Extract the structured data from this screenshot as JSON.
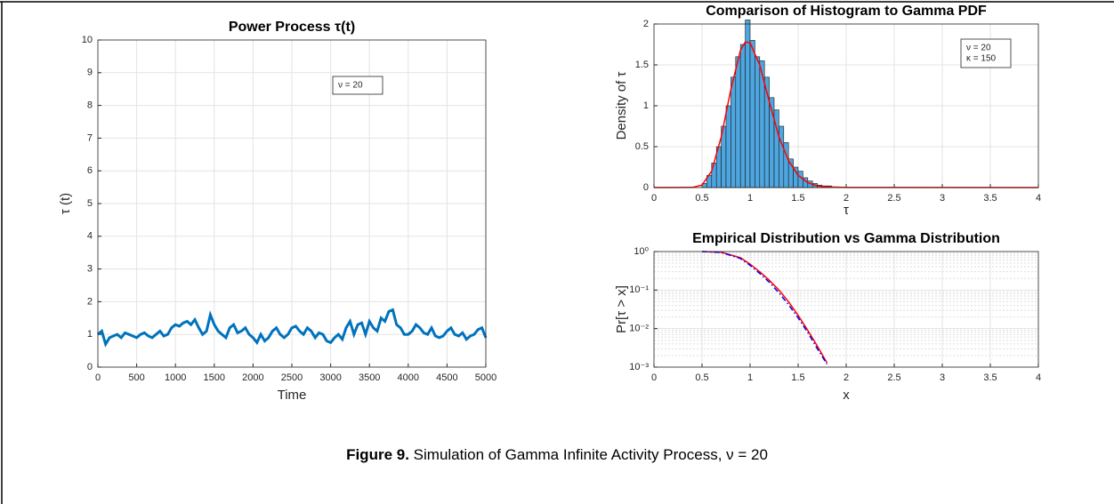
{
  "chart_data": [
    {
      "type": "line",
      "title": "Power Process τ(t)",
      "xlabel": "Time",
      "ylabel": "τ (t)",
      "annotations": [
        "ν = 20"
      ],
      "xlim": [
        0,
        5000
      ],
      "xticks": [
        0,
        500,
        1000,
        1500,
        2000,
        2500,
        3000,
        3500,
        4000,
        4500,
        5000
      ],
      "ylim": [
        0,
        10
      ],
      "yticks": [
        0,
        1,
        2,
        3,
        4,
        5,
        6,
        7,
        8,
        9,
        10
      ],
      "grid": true,
      "series": [
        {
          "color": "#0072bd",
          "style": "solid",
          "width": 3,
          "x": [
            0,
            50,
            100,
            150,
            200,
            250,
            300,
            350,
            400,
            450,
            500,
            550,
            600,
            650,
            700,
            750,
            800,
            850,
            900,
            950,
            1000,
            1050,
            1100,
            1150,
            1200,
            1250,
            1300,
            1350,
            1400,
            1450,
            1500,
            1550,
            1600,
            1650,
            1700,
            1750,
            1800,
            1850,
            1900,
            1950,
            2000,
            2050,
            2100,
            2150,
            2200,
            2250,
            2300,
            2350,
            2400,
            2450,
            2500,
            2550,
            2600,
            2650,
            2700,
            2750,
            2800,
            2850,
            2900,
            2950,
            3000,
            3050,
            3100,
            3150,
            3200,
            3250,
            3300,
            3350,
            3400,
            3450,
            3500,
            3550,
            3600,
            3650,
            3700,
            3750,
            3800,
            3850,
            3900,
            3950,
            4000,
            4050,
            4100,
            4150,
            4200,
            4250,
            4300,
            4350,
            4400,
            4450,
            4500,
            4550,
            4600,
            4650,
            4700,
            4750,
            4800,
            4850,
            4900,
            4950,
            5000
          ],
          "values": [
            1.0,
            1.1,
            0.7,
            0.9,
            0.95,
            1.0,
            0.9,
            1.05,
            1.0,
            0.95,
            0.9,
            1.0,
            1.05,
            0.95,
            0.9,
            1.0,
            1.1,
            0.95,
            1.0,
            1.2,
            1.3,
            1.25,
            1.35,
            1.4,
            1.3,
            1.45,
            1.2,
            1.0,
            1.1,
            1.6,
            1.3,
            1.1,
            1.0,
            0.9,
            1.2,
            1.3,
            1.05,
            1.1,
            1.2,
            1.0,
            0.9,
            0.75,
            1.0,
            0.8,
            0.9,
            1.1,
            1.2,
            1.0,
            0.9,
            1.0,
            1.2,
            1.25,
            1.1,
            1.0,
            1.2,
            1.1,
            0.9,
            1.05,
            1.0,
            0.8,
            0.75,
            0.9,
            1.0,
            0.85,
            1.2,
            1.4,
            1.0,
            1.3,
            1.35,
            1.0,
            1.4,
            1.2,
            1.1,
            1.5,
            1.4,
            1.7,
            1.75,
            1.3,
            1.2,
            1.0,
            1.0,
            1.1,
            1.3,
            1.2,
            1.05,
            1.0,
            1.2,
            0.95,
            0.9,
            0.95,
            1.1,
            1.2,
            1.0,
            0.95,
            1.05,
            0.85,
            0.95,
            1.0,
            1.15,
            1.2,
            0.9
          ]
        }
      ]
    },
    {
      "type": "histogram",
      "title": "Comparison of Histogram to Gamma PDF",
      "xlabel": "τ",
      "ylabel": "Density of τ",
      "annotations": [
        "ν = 20",
        "κ = 150"
      ],
      "xlim": [
        0,
        4
      ],
      "xticks": [
        0,
        0.5,
        1,
        1.5,
        2,
        2.5,
        3,
        3.5,
        4
      ],
      "ylim": [
        0,
        2
      ],
      "yticks": [
        0,
        0.5,
        1,
        1.5,
        2
      ],
      "grid": true,
      "color": "#4da6df",
      "bins": [
        0.5,
        0.55,
        0.6,
        0.65,
        0.7,
        0.75,
        0.8,
        0.85,
        0.9,
        0.95,
        1.0,
        1.05,
        1.1,
        1.15,
        1.2,
        1.25,
        1.3,
        1.35,
        1.4,
        1.45,
        1.5,
        1.55,
        1.6,
        1.65,
        1.7,
        1.75,
        1.8,
        1.85
      ],
      "values": [
        0.05,
        0.15,
        0.3,
        0.5,
        0.75,
        1.0,
        1.35,
        1.6,
        1.75,
        2.05,
        1.8,
        1.6,
        1.55,
        1.35,
        1.1,
        0.95,
        0.75,
        0.55,
        0.35,
        0.25,
        0.2,
        0.12,
        0.08,
        0.05,
        0.03,
        0.02,
        0.02
      ],
      "series": [
        {
          "color": "#ff0000",
          "style": "solid",
          "width": 1.5,
          "x": [
            0,
            0.4,
            0.5,
            0.6,
            0.7,
            0.8,
            0.9,
            0.95,
            1.0,
            1.1,
            1.2,
            1.3,
            1.4,
            1.5,
            1.6,
            1.7,
            1.8,
            2.0,
            4
          ],
          "values": [
            0,
            0.002,
            0.03,
            0.2,
            0.62,
            1.2,
            1.68,
            1.78,
            1.77,
            1.5,
            1.05,
            0.62,
            0.33,
            0.15,
            0.06,
            0.02,
            0.008,
            0.001,
            0
          ]
        }
      ]
    },
    {
      "type": "line",
      "title": "Empirical Distribution vs Gamma Distribution",
      "xlabel": "x",
      "ylabel": "Pr[τ > x]",
      "annotations": [],
      "xlim": [
        0,
        4
      ],
      "xticks": [
        0,
        0.5,
        1,
        1.5,
        2,
        2.5,
        3,
        3.5,
        4
      ],
      "ylim": [
        0.001,
        1
      ],
      "ylog": true,
      "grid": true,
      "minor_grid": true,
      "yticks": [
        {
          "value": 0.001,
          "label": "10⁻³"
        },
        {
          "value": 0.01,
          "label": "10⁻²"
        },
        {
          "value": 0.1,
          "label": "10⁻¹"
        },
        {
          "value": 1,
          "label": "10⁰"
        }
      ],
      "series": [
        {
          "color": "#ff0000",
          "style": "solid",
          "width": 1.5,
          "x": [
            0.5,
            0.7,
            0.9,
            1.0,
            1.1,
            1.2,
            1.3,
            1.4,
            1.5,
            1.6,
            1.7,
            1.8
          ],
          "values": [
            0.999,
            0.96,
            0.69,
            0.47,
            0.3,
            0.18,
            0.1,
            0.05,
            0.022,
            0.009,
            0.0035,
            0.0013
          ]
        },
        {
          "color": "#0000ff",
          "style": "dashdot",
          "width": 1.5,
          "x": [
            0.5,
            0.7,
            0.9,
            1.0,
            1.1,
            1.2,
            1.3,
            1.4,
            1.5,
            1.6,
            1.7,
            1.8
          ],
          "values": [
            0.999,
            0.95,
            0.66,
            0.44,
            0.27,
            0.16,
            0.085,
            0.042,
            0.019,
            0.008,
            0.003,
            0.0012
          ]
        }
      ]
    }
  ],
  "caption": {
    "label": "Figure 9.",
    "text": "Simulation of Gamma Infinite Activity Process, ν = 20"
  }
}
